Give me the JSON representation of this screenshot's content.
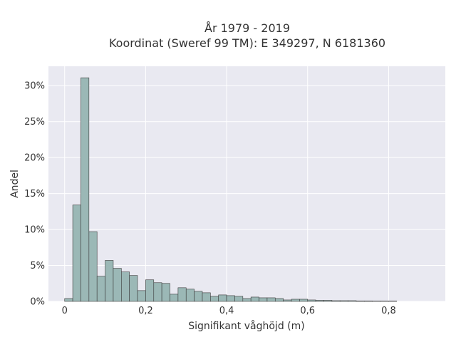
{
  "chart_data": {
    "type": "bar",
    "title_lines": [
      "År 1979 - 2019",
      "Koordinat (Sweref 99 TM): E 349297, N 6181360"
    ],
    "xlabel": "Signifikant våghöjd (m)",
    "ylabel": "Andel",
    "xlim": [
      -0.04,
      0.94
    ],
    "ylim": [
      0,
      0.327
    ],
    "x_ticks": [
      0,
      0.2,
      0.4,
      0.6,
      0.8
    ],
    "x_tick_labels": [
      "0",
      "0,2",
      "0,4",
      "0,6",
      "0,8"
    ],
    "y_ticks": [
      0,
      0.05,
      0.1,
      0.15,
      0.2,
      0.25,
      0.3
    ],
    "y_tick_labels": [
      "0%",
      "5%",
      "10%",
      "15%",
      "20%",
      "25%",
      "30%"
    ],
    "bin_width": 0.02,
    "bins_start": [
      0.0,
      0.02,
      0.04,
      0.06,
      0.08,
      0.1,
      0.12,
      0.14,
      0.16,
      0.18,
      0.2,
      0.22,
      0.24,
      0.26,
      0.28,
      0.3,
      0.32,
      0.34,
      0.36,
      0.38,
      0.4,
      0.42,
      0.44,
      0.46,
      0.48,
      0.5,
      0.52,
      0.54,
      0.56,
      0.58,
      0.6,
      0.62,
      0.64,
      0.66,
      0.68,
      0.7,
      0.72,
      0.74,
      0.76,
      0.78,
      0.8
    ],
    "values": [
      0.004,
      0.134,
      0.311,
      0.097,
      0.035,
      0.057,
      0.046,
      0.041,
      0.036,
      0.015,
      0.03,
      0.026,
      0.025,
      0.01,
      0.019,
      0.017,
      0.014,
      0.012,
      0.007,
      0.009,
      0.008,
      0.007,
      0.004,
      0.006,
      0.005,
      0.005,
      0.004,
      0.002,
      0.003,
      0.003,
      0.002,
      0.0015,
      0.0015,
      0.001,
      0.001,
      0.001,
      0.0007,
      0.0007,
      0.0005,
      0.0005,
      0.0005
    ],
    "grid": true,
    "colors": {
      "plot_bg": "#e9e9f1",
      "grid": "#ffffff",
      "bar_fill": "#9bb8b6",
      "bar_stroke": "#3a3a3a"
    }
  }
}
